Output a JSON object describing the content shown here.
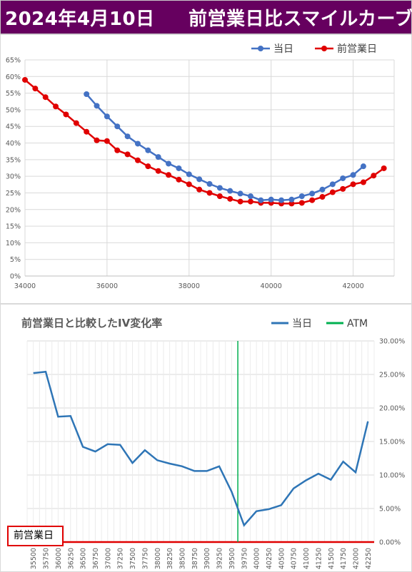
{
  "banner": {
    "title": "2024年4月10日",
    "subtitle": "前営業日比スマイルカーブ",
    "colors": {
      "background": "#66005f",
      "text": "#ffffff"
    }
  },
  "box_label": {
    "text": "前営業日",
    "border_color": "#e00000"
  },
  "chart_data": [
    {
      "type": "line",
      "title": "",
      "xlabel": "",
      "ylabel": "",
      "xlim": [
        34000,
        43000
      ],
      "ylim": [
        0,
        0.65
      ],
      "x_ticks": [
        "34000",
        "36000",
        "38000",
        "40000",
        "42000"
      ],
      "x_tick_values": [
        34000,
        36000,
        38000,
        40000,
        42000
      ],
      "y_ticks": [
        "0%",
        "5%",
        "10%",
        "15%",
        "20%",
        "25%",
        "30%",
        "35%",
        "40%",
        "45%",
        "50%",
        "55%",
        "60%",
        "65%"
      ],
      "y_tick_values": [
        0,
        0.05,
        0.1,
        0.15,
        0.2,
        0.25,
        0.3,
        0.35,
        0.4,
        0.45,
        0.5,
        0.55,
        0.6,
        0.65
      ],
      "grid": true,
      "legend": "top-right",
      "series": [
        {
          "name": "当日",
          "color": "#4472c4",
          "x": [
            35500,
            35750,
            36000,
            36250,
            36500,
            36750,
            37000,
            37250,
            37500,
            37750,
            38000,
            38250,
            38500,
            38750,
            39000,
            39250,
            39500,
            39750,
            40000,
            40250,
            40500,
            40750,
            41000,
            41250,
            41500,
            41750,
            42000,
            42250
          ],
          "y": [
            0.547,
            0.512,
            0.48,
            0.45,
            0.42,
            0.398,
            0.378,
            0.358,
            0.338,
            0.324,
            0.306,
            0.291,
            0.277,
            0.265,
            0.256,
            0.248,
            0.24,
            0.228,
            0.23,
            0.228,
            0.23,
            0.24,
            0.248,
            0.26,
            0.276,
            0.294,
            0.304,
            0.33
          ]
        },
        {
          "name": "前営業日",
          "color": "#e00000",
          "x": [
            34000,
            34250,
            34500,
            34750,
            35000,
            35250,
            35500,
            35750,
            36000,
            36250,
            36500,
            36750,
            37000,
            37250,
            37500,
            37750,
            38000,
            38250,
            38500,
            38750,
            39000,
            39250,
            39500,
            39750,
            40000,
            40250,
            40500,
            40750,
            41000,
            41250,
            41500,
            41750,
            42000,
            42250,
            42500,
            42750
          ],
          "y": [
            0.59,
            0.564,
            0.538,
            0.51,
            0.486,
            0.46,
            0.434,
            0.408,
            0.406,
            0.378,
            0.366,
            0.348,
            0.33,
            0.316,
            0.304,
            0.29,
            0.276,
            0.26,
            0.25,
            0.24,
            0.232,
            0.224,
            0.224,
            0.22,
            0.22,
            0.218,
            0.218,
            0.22,
            0.228,
            0.238,
            0.252,
            0.262,
            0.276,
            0.282,
            0.302,
            0.324
          ]
        }
      ]
    },
    {
      "type": "line",
      "title": "前営業日と比較したIV変化率",
      "xlabel": "",
      "ylabel": "",
      "categories": [
        "35500",
        "35750",
        "36000",
        "36250",
        "36500",
        "36750",
        "37000",
        "37250",
        "37500",
        "37750",
        "38000",
        "38250",
        "38500",
        "38750",
        "39000",
        "39250",
        "39500",
        "39750",
        "40000",
        "40250",
        "40500",
        "40750",
        "41000",
        "41250",
        "41500",
        "41750",
        "42000",
        "42250"
      ],
      "ylim": [
        0,
        0.3
      ],
      "y_ticks": [
        "0.00%",
        "5.00%",
        "10.00%",
        "15.00%",
        "20.00%",
        "25.00%",
        "30.00%"
      ],
      "y_tick_values": [
        0,
        0.05,
        0.1,
        0.15,
        0.2,
        0.25,
        0.3
      ],
      "y_axis_side": "right",
      "grid": true,
      "legend": "top-right",
      "atm_strike": "39750",
      "series": [
        {
          "name": "当日",
          "color": "#2e75b6",
          "values": [
            0.252,
            0.254,
            0.187,
            0.188,
            0.142,
            0.135,
            0.146,
            0.145,
            0.118,
            0.137,
            0.122,
            0.117,
            0.113,
            0.106,
            0.106,
            0.113,
            0.075,
            0.025,
            0.046,
            0.049,
            0.055,
            0.08,
            0.092,
            0.102,
            0.093,
            0.12,
            0.104,
            0.18
          ]
        },
        {
          "name": "ATM",
          "color": "#00b050"
        },
        {
          "name": "前営業日",
          "color": "#e00000",
          "values": [
            0,
            0,
            0,
            0,
            0,
            0,
            0,
            0,
            0,
            0,
            0,
            0,
            0,
            0,
            0,
            0,
            0,
            0,
            0,
            0,
            0,
            0,
            0,
            0,
            0,
            0,
            0,
            0
          ]
        }
      ]
    }
  ]
}
